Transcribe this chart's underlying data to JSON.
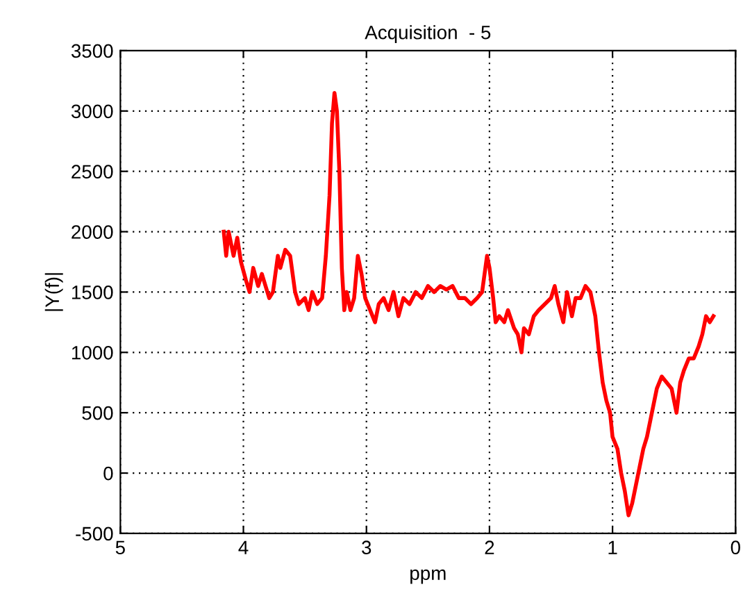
{
  "chart_data": {
    "type": "line",
    "title": "Acquisition  - 5",
    "xlabel": "ppm",
    "ylabel": "|Y(f)|",
    "xlim": [
      5,
      0
    ],
    "xticks": [
      5,
      4,
      3,
      2,
      1,
      0
    ],
    "ylim": [
      -500,
      3500
    ],
    "yticks": [
      -500,
      0,
      500,
      1000,
      1500,
      2000,
      2500,
      3000,
      3500
    ],
    "grid": true,
    "line_style": "solid",
    "marker": "none",
    "series": [
      {
        "color": "#ff0000",
        "x": [
          4.16,
          4.14,
          4.12,
          4.08,
          4.05,
          4.02,
          3.98,
          3.95,
          3.92,
          3.88,
          3.85,
          3.82,
          3.79,
          3.76,
          3.72,
          3.7,
          3.66,
          3.62,
          3.58,
          3.55,
          3.5,
          3.47,
          3.44,
          3.4,
          3.36,
          3.33,
          3.3,
          3.28,
          3.26,
          3.24,
          3.22,
          3.2,
          3.18,
          3.16,
          3.13,
          3.1,
          3.07,
          3.04,
          3.01,
          2.97,
          2.93,
          2.9,
          2.86,
          2.82,
          2.78,
          2.74,
          2.7,
          2.65,
          2.6,
          2.55,
          2.5,
          2.45,
          2.4,
          2.35,
          2.3,
          2.25,
          2.2,
          2.15,
          2.1,
          2.06,
          2.02,
          2.0,
          1.97,
          1.95,
          1.92,
          1.88,
          1.85,
          1.8,
          1.77,
          1.74,
          1.72,
          1.68,
          1.64,
          1.6,
          1.55,
          1.5,
          1.47,
          1.44,
          1.4,
          1.37,
          1.33,
          1.3,
          1.26,
          1.22,
          1.18,
          1.14,
          1.11,
          1.08,
          1.05,
          1.02,
          1.0,
          0.96,
          0.93,
          0.9,
          0.87,
          0.84,
          0.81,
          0.78,
          0.75,
          0.72,
          0.68,
          0.64,
          0.6,
          0.56,
          0.52,
          0.48,
          0.45,
          0.42,
          0.38,
          0.34,
          0.3,
          0.27,
          0.24,
          0.21,
          0.18
        ],
        "values": [
          2000,
          1800,
          2000,
          1800,
          1950,
          1750,
          1600,
          1500,
          1700,
          1550,
          1650,
          1550,
          1450,
          1500,
          1800,
          1700,
          1850,
          1800,
          1500,
          1400,
          1450,
          1350,
          1500,
          1400,
          1450,
          1800,
          2300,
          2900,
          3150,
          3000,
          2500,
          1700,
          1350,
          1500,
          1350,
          1450,
          1800,
          1650,
          1450,
          1350,
          1250,
          1400,
          1450,
          1350,
          1500,
          1300,
          1450,
          1400,
          1500,
          1450,
          1550,
          1500,
          1550,
          1520,
          1550,
          1450,
          1450,
          1400,
          1450,
          1500,
          1800,
          1700,
          1450,
          1250,
          1300,
          1250,
          1350,
          1200,
          1150,
          1000,
          1200,
          1150,
          1300,
          1350,
          1400,
          1450,
          1550,
          1400,
          1250,
          1500,
          1300,
          1450,
          1450,
          1550,
          1500,
          1300,
          1000,
          750,
          600,
          500,
          300,
          200,
          0,
          -150,
          -350,
          -250,
          -100,
          50,
          200,
          300,
          500,
          700,
          800,
          750,
          700,
          500,
          750,
          850,
          950,
          950,
          1050,
          1150,
          1300,
          1250,
          1300
        ]
      }
    ]
  }
}
